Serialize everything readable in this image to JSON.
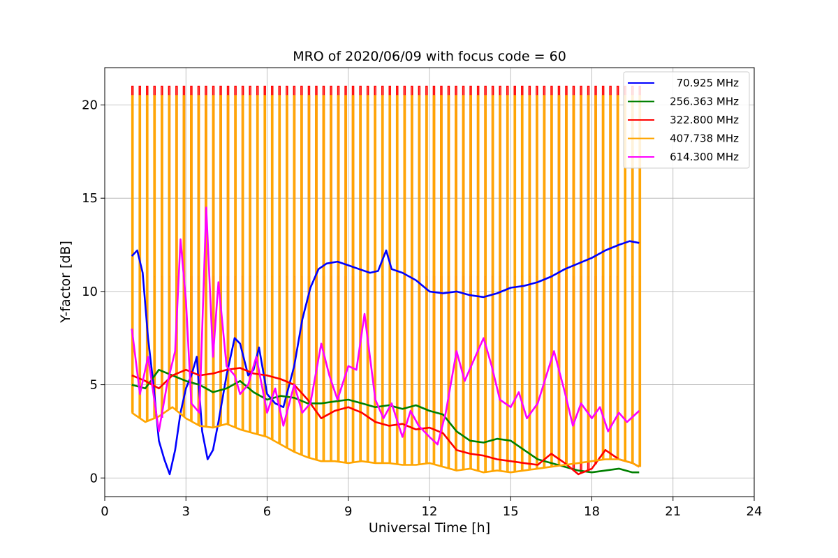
{
  "chart_data": {
    "type": "line",
    "title": "MRO of 2020/06/09 with focus code = 60",
    "xlabel": "Universal Time [h]",
    "ylabel": "Y-factor [dB]",
    "xlim": [
      0,
      24
    ],
    "ylim": [
      -1,
      22
    ],
    "xticks": [
      0,
      3,
      6,
      9,
      12,
      15,
      18,
      21,
      24
    ],
    "yticks": [
      0,
      5,
      10,
      15,
      20
    ],
    "grid": true,
    "legend_position": "top-right",
    "cycles": {
      "start": 1.0,
      "end": 19.75,
      "count": 70,
      "spike_peak_322_MHz": 21.0,
      "spike_peak_407_MHz": 20.5,
      "spike_peak_614_MHz": 10.8
    },
    "series": [
      {
        "name": "70.925 MHz",
        "color": "#0000ff",
        "x": [
          1.0,
          1.2,
          1.4,
          1.6,
          1.8,
          2.0,
          2.2,
          2.4,
          2.6,
          2.8,
          3.0,
          3.2,
          3.4,
          3.6,
          3.8,
          4.0,
          4.2,
          4.5,
          4.8,
          5.0,
          5.3,
          5.5,
          5.7,
          6.0,
          6.3,
          6.6,
          7.0,
          7.3,
          7.6,
          7.9,
          8.2,
          8.6,
          9.0,
          9.4,
          9.8,
          10.1,
          10.4,
          10.6,
          11.0,
          11.5,
          12.0,
          12.5,
          13.0,
          13.5,
          14.0,
          14.5,
          15.0,
          15.5,
          16.0,
          16.5,
          17.0,
          17.5,
          18.0,
          18.5,
          19.0,
          19.4,
          19.75
        ],
        "y": [
          11.9,
          12.2,
          11.0,
          7.5,
          5.0,
          2.0,
          1.0,
          0.2,
          1.5,
          3.5,
          4.8,
          5.5,
          6.5,
          2.5,
          1.0,
          1.5,
          3.0,
          5.5,
          7.5,
          7.2,
          5.5,
          5.8,
          7.0,
          4.5,
          4.0,
          3.8,
          6.0,
          8.5,
          10.2,
          11.2,
          11.5,
          11.6,
          11.4,
          11.2,
          11.0,
          11.1,
          12.2,
          11.2,
          11.0,
          10.6,
          10.0,
          9.9,
          10.0,
          9.8,
          9.7,
          9.9,
          10.2,
          10.3,
          10.5,
          10.8,
          11.2,
          11.5,
          11.8,
          12.2,
          12.5,
          12.7,
          12.6
        ]
      },
      {
        "name": "256.363 MHz",
        "color": "#008000",
        "x": [
          1.0,
          1.5,
          2.0,
          2.5,
          3.0,
          3.5,
          4.0,
          4.5,
          5.0,
          5.5,
          6.0,
          6.5,
          7.0,
          7.5,
          8.0,
          8.5,
          9.0,
          9.5,
          10.0,
          10.5,
          11.0,
          11.5,
          12.0,
          12.5,
          13.0,
          13.5,
          14.0,
          14.5,
          15.0,
          15.5,
          16.0,
          16.5,
          17.0,
          17.5,
          18.0,
          18.5,
          19.0,
          19.5,
          19.75
        ],
        "y": [
          5.0,
          4.8,
          5.8,
          5.5,
          5.2,
          5.0,
          4.6,
          4.8,
          5.2,
          4.6,
          4.2,
          4.4,
          4.3,
          4.0,
          4.0,
          4.1,
          4.2,
          4.0,
          3.8,
          3.9,
          3.7,
          3.9,
          3.6,
          3.4,
          2.5,
          2.0,
          1.9,
          2.1,
          2.0,
          1.5,
          1.0,
          0.8,
          0.6,
          0.4,
          0.3,
          0.4,
          0.5,
          0.3,
          0.3
        ]
      },
      {
        "name": "322.800 MHz",
        "color": "#ff0000",
        "x": [
          1.0,
          1.5,
          2.0,
          2.5,
          3.0,
          3.5,
          4.0,
          4.5,
          5.0,
          5.5,
          6.0,
          6.5,
          7.0,
          7.5,
          8.0,
          8.5,
          9.0,
          9.5,
          10.0,
          10.5,
          11.0,
          11.5,
          12.0,
          12.5,
          13.0,
          13.5,
          14.0,
          14.5,
          15.0,
          15.5,
          16.0,
          16.5,
          17.0,
          17.5,
          18.0,
          18.5,
          19.0,
          19.5,
          19.75
        ],
        "y": [
          5.5,
          5.2,
          4.8,
          5.5,
          5.8,
          5.5,
          5.6,
          5.8,
          5.9,
          5.6,
          5.5,
          5.3,
          5.0,
          4.2,
          3.2,
          3.6,
          3.8,
          3.5,
          3.0,
          2.8,
          2.9,
          2.6,
          2.7,
          2.4,
          1.5,
          1.3,
          1.2,
          1.0,
          0.9,
          0.8,
          0.7,
          1.3,
          0.8,
          0.2,
          0.5,
          1.5,
          1.0,
          0.8,
          0.6
        ]
      },
      {
        "name": "407.738 MHz",
        "color": "#ffa500",
        "x": [
          1.0,
          1.5,
          2.0,
          2.5,
          3.0,
          3.5,
          4.0,
          4.5,
          5.0,
          5.5,
          6.0,
          6.5,
          7.0,
          7.5,
          8.0,
          8.5,
          9.0,
          9.5,
          10.0,
          10.5,
          11.0,
          11.5,
          12.0,
          12.5,
          13.0,
          13.5,
          14.0,
          14.5,
          15.0,
          15.5,
          16.0,
          16.5,
          17.0,
          17.5,
          18.0,
          18.5,
          19.0,
          19.5,
          19.75
        ],
        "y": [
          3.5,
          3.0,
          3.3,
          3.8,
          3.2,
          2.8,
          2.7,
          2.9,
          2.6,
          2.4,
          2.2,
          1.8,
          1.4,
          1.1,
          0.9,
          0.9,
          0.8,
          0.9,
          0.8,
          0.8,
          0.7,
          0.7,
          0.8,
          0.6,
          0.4,
          0.5,
          0.3,
          0.4,
          0.3,
          0.4,
          0.5,
          0.6,
          0.7,
          0.8,
          0.9,
          1.0,
          1.0,
          0.8,
          0.6
        ]
      },
      {
        "name": "614.300 MHz",
        "color": "#ff00ff",
        "x": [
          1.0,
          1.3,
          1.6,
          2.0,
          2.3,
          2.6,
          2.8,
          3.0,
          3.2,
          3.5,
          3.75,
          4.0,
          4.2,
          4.5,
          4.8,
          5.0,
          5.3,
          5.6,
          6.0,
          6.3,
          6.6,
          7.0,
          7.3,
          7.6,
          8.0,
          8.3,
          8.6,
          9.0,
          9.3,
          9.6,
          10.0,
          10.3,
          10.6,
          11.0,
          11.3,
          11.6,
          12.0,
          12.3,
          12.6,
          13.0,
          13.3,
          13.6,
          14.0,
          14.3,
          14.6,
          15.0,
          15.3,
          15.6,
          16.0,
          16.3,
          16.6,
          17.0,
          17.3,
          17.6,
          18.0,
          18.3,
          18.6,
          19.0,
          19.3,
          19.75
        ],
        "y": [
          8.0,
          4.5,
          6.5,
          2.5,
          5.0,
          6.8,
          12.8,
          9.5,
          4.0,
          3.5,
          14.5,
          6.5,
          10.5,
          6.0,
          5.5,
          4.5,
          5.0,
          6.5,
          3.5,
          4.8,
          2.8,
          5.0,
          3.5,
          4.0,
          7.2,
          5.5,
          4.2,
          6.0,
          5.8,
          8.8,
          4.2,
          3.2,
          4.0,
          2.2,
          3.6,
          2.8,
          2.2,
          1.8,
          3.5,
          6.8,
          5.2,
          6.2,
          7.5,
          6.0,
          4.2,
          3.8,
          4.6,
          3.2,
          4.0,
          5.4,
          6.8,
          4.6,
          2.8,
          4.0,
          3.2,
          3.8,
          2.5,
          3.5,
          3.0,
          3.6
        ]
      }
    ]
  }
}
